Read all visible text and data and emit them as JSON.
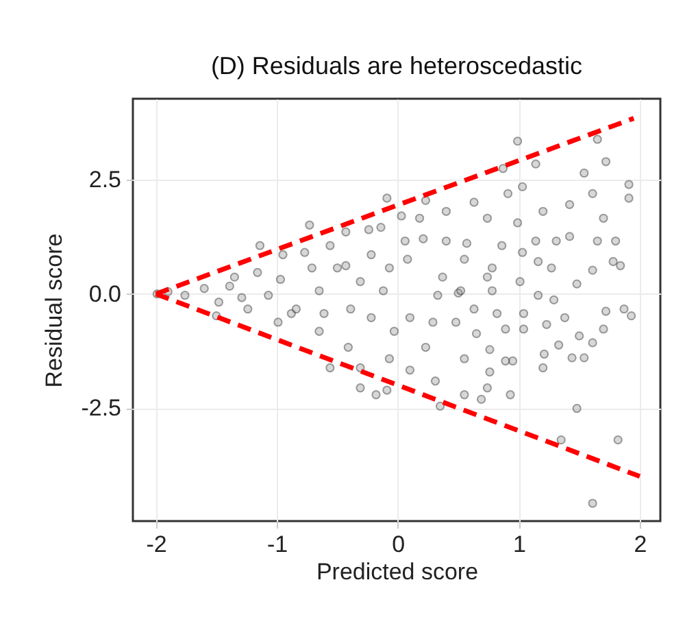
{
  "chart_data": {
    "type": "scatter",
    "title": "(D) Residuals are heteroscedastic",
    "xlabel": "Predicted score",
    "ylabel": "Residual score",
    "xlim": [
      -2.19,
      2.17
    ],
    "ylim": [
      -4.98,
      4.28
    ],
    "xticks": [
      -2,
      -1,
      0,
      1,
      2
    ],
    "yticks": [
      {
        "value": -2.5,
        "label": "-2.5"
      },
      {
        "value": 0,
        "label": "0.0"
      },
      {
        "value": 2.5,
        "label": "2.5"
      }
    ],
    "grid": true,
    "series": [
      {
        "color": "#8c8c8c",
        "marker": "circle",
        "x": [
          -1.99,
          -1.9,
          -1.76,
          -1.6,
          -1.48,
          -1.5,
          -1.35,
          -1.29,
          -1.14,
          -1.16,
          -1.07,
          -0.97,
          -0.95,
          -0.99,
          -0.88,
          -0.77,
          -0.73,
          -0.71,
          -0.65,
          -0.61,
          -0.65,
          -0.56,
          -0.5,
          -0.43,
          -0.39,
          -0.56,
          -0.41,
          -0.31,
          -0.31,
          -0.18,
          -0.09,
          -0.24,
          -0.14,
          -0.22,
          -0.12,
          -0.22,
          -0.31,
          -0.09,
          -0.43,
          -0.84,
          -1.24,
          -1.39,
          0.99,
          1.65,
          1.72,
          1.54,
          1.91,
          1.91,
          1.61,
          0.87,
          1.14,
          1.03,
          0.91,
          0.63,
          0.23,
          1.42,
          1.7,
          1.2,
          0.99,
          0.74,
          0.4,
          0.03,
          0.18,
          1.42,
          1.65,
          1.8,
          1.31,
          1.14,
          0.86,
          0.57,
          0.4,
          0.21,
          0.06,
          1.03,
          1.16,
          1.27,
          1.61,
          1.78,
          1.84,
          1.48,
          0.78,
          0.55,
          0.08,
          -0.07,
          0.5,
          0.33,
          1.01,
          1.16,
          1.29,
          1.72,
          1.87,
          1.93,
          1.7,
          1.5,
          1.61,
          1.33,
          1.44,
          1.54,
          1.21,
          1.2,
          0.89,
          0.95,
          0.76,
          0.76,
          0.74,
          0.93,
          0.69,
          0.55,
          0.35,
          0.31,
          0.1,
          -0.07,
          1.48,
          1.35,
          1.82,
          1.61,
          0.55,
          0.65,
          0.89,
          1.04,
          1.23,
          1.38,
          0.23,
          0.29,
          0.1,
          -0.03,
          0.48,
          0.63,
          0.82,
          1.04,
          0.52,
          0.78,
          0.74,
          0.37
        ],
        "values": [
          0,
          0.05,
          -0.03,
          0.12,
          -0.18,
          -0.48,
          0.37,
          -0.08,
          1.06,
          0.47,
          -0.03,
          0.32,
          0.86,
          -0.62,
          -0.43,
          0.91,
          1.51,
          0.57,
          0.07,
          -0.43,
          -0.82,
          1.06,
          0.57,
          1.36,
          -0.33,
          -1.62,
          -1.17,
          -1.62,
          -2.06,
          -2.21,
          -2.11,
          1.41,
          1.46,
          0.86,
          0.07,
          -0.52,
          0.27,
          2.1,
          0.62,
          -0.33,
          -0.33,
          0.17,
          3.35,
          3.39,
          2.9,
          2.65,
          2.4,
          2.1,
          2.2,
          2.75,
          2.85,
          2.35,
          2.2,
          2.01,
          2.05,
          1.96,
          1.66,
          1.81,
          1.56,
          1.66,
          1.81,
          1.71,
          1.66,
          1.26,
          1.16,
          1.16,
          1.16,
          1.16,
          1.06,
          1.11,
          1.16,
          1.21,
          1.16,
          0.91,
          0.71,
          0.57,
          0.52,
          0.71,
          0.62,
          0.22,
          0.57,
          0.76,
          0.76,
          0.57,
          0.02,
          -0.03,
          0.27,
          -0.03,
          -0.13,
          -0.38,
          -0.33,
          -0.48,
          -0.77,
          -0.92,
          -1.07,
          -1.12,
          -1.4,
          -1.4,
          -1.32,
          -1.62,
          -1.47,
          -1.47,
          -1.22,
          -1.71,
          -2.06,
          -2.21,
          -2.31,
          -2.21,
          -2.46,
          -1.91,
          -1.67,
          -1.42,
          -2.51,
          -3.2,
          -3.2,
          -4.59,
          -1.42,
          -0.87,
          -0.77,
          -0.77,
          -0.67,
          -0.52,
          -1.17,
          -0.62,
          -0.52,
          -0.82,
          -0.62,
          -0.33,
          -0.43,
          -0.43,
          0.07,
          0.07,
          0.37,
          0.37
        ]
      },
      {
        "type": "line",
        "color": "#ff0000",
        "line_style": "dashed",
        "x": [
          -2,
          1.95
        ],
        "values": [
          0,
          3.85
        ]
      },
      {
        "type": "line",
        "color": "#ff0000",
        "line_style": "dashed",
        "x": [
          -2,
          2
        ],
        "values": [
          0,
          -4
        ]
      }
    ]
  }
}
